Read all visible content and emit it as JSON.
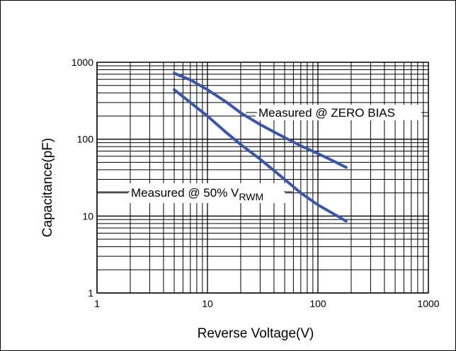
{
  "chart_data": {
    "type": "line",
    "xlabel": "Reverse Voltage(V)",
    "ylabel": "Capacitance(pF)",
    "x_scale": "log",
    "y_scale": "log",
    "xlim": [
      1,
      1000
    ],
    "ylim": [
      1,
      1000
    ],
    "x_ticks": [
      "1",
      "10",
      "100",
      "1000"
    ],
    "y_ticks": [
      "1",
      "10",
      "100",
      "1000"
    ],
    "grid": true,
    "series": [
      {
        "label_parts": [
          "Measured @ ZERO BIAS"
        ],
        "color": "#3a56a8",
        "x": [
          5,
          7,
          10,
          15,
          20,
          30,
          50,
          70,
          100,
          150,
          180
        ],
        "y": [
          720,
          590,
          440,
          300,
          220,
          155,
          105,
          82,
          65,
          49,
          43
        ]
      },
      {
        "label_parts": [
          "Measured @ 50% V",
          "RWM"
        ],
        "color": "#3a56a8",
        "x": [
          5,
          7,
          10,
          15,
          20,
          30,
          50,
          70,
          100,
          150,
          180
        ],
        "y": [
          440,
          300,
          200,
          120,
          85,
          55,
          30,
          20,
          14,
          10,
          8.6
        ]
      }
    ]
  }
}
